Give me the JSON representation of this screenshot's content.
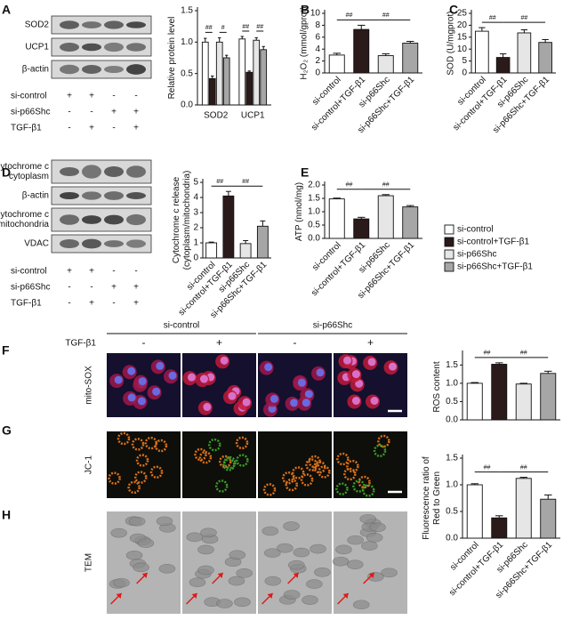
{
  "panels": [
    "A",
    "B",
    "C",
    "D",
    "E",
    "F",
    "G",
    "H"
  ],
  "blot_A": {
    "bands": [
      [
        "SOD2"
      ],
      [
        "UCP1"
      ],
      [
        "β-actin"
      ]
    ],
    "conditions": [
      {
        "label": "si-control",
        "signs": [
          "+",
          "+",
          "-",
          "-"
        ]
      },
      {
        "label": "si-p66Shc",
        "signs": [
          "-",
          "-",
          "+",
          "+"
        ]
      },
      {
        "label": "TGF-β1",
        "signs": [
          "-",
          "+",
          "-",
          "+"
        ]
      }
    ]
  },
  "blot_D": {
    "bands": [
      [
        "Cytochrome c",
        "cytoplasm"
      ],
      [
        "β-actin"
      ],
      [
        "Cytochrome c",
        "mitochondria"
      ],
      [
        "VDAC"
      ]
    ],
    "conditions": [
      {
        "label": "si-control",
        "signs": [
          "+",
          "+",
          "-",
          "-"
        ]
      },
      {
        "label": "si-p66Shc",
        "signs": [
          "-",
          "-",
          "+",
          "+"
        ]
      },
      {
        "label": "TGF-β1",
        "signs": [
          "-",
          "+",
          "-",
          "+"
        ]
      }
    ]
  },
  "images": {
    "groups": [
      "si-control",
      "si-p66Shc"
    ],
    "treatment": "TGF-β1",
    "signs": [
      "-",
      "+",
      "-",
      "+"
    ],
    "rows": [
      "mito-SOX",
      "JC-1",
      "TEM"
    ]
  },
  "chart_data": [
    {
      "type": "grouped_bar",
      "ylabel": "Relative protein level",
      "categories": [
        "SOD2",
        "UCP1"
      ],
      "series": [
        {
          "color": "#ffffff",
          "values": [
            1.0,
            1.05
          ],
          "errors": [
            0.06,
            0.04
          ]
        },
        {
          "color": "#2b1a1a",
          "values": [
            0.42,
            0.52
          ],
          "errors": [
            0.04,
            0.02
          ]
        },
        {
          "color": "#e6e6e6",
          "values": [
            1.0,
            1.03
          ],
          "errors": [
            0.07,
            0.04
          ]
        },
        {
          "color": "#a6a6a6",
          "values": [
            0.75,
            0.88
          ],
          "errors": [
            0.04,
            0.05
          ]
        }
      ],
      "ylim": [
        0,
        1.5
      ],
      "yticks": [
        {
          "value": 0,
          "label": "0.0"
        },
        0.5,
        {
          "value": 1,
          "label": "1.0"
        },
        1.5
      ],
      "annotations": [
        {
          "label": "##",
          "category": 0,
          "from": 0,
          "to": 1
        },
        {
          "label": "#",
          "category": 0,
          "from": 2,
          "to": 3
        },
        {
          "label": "##",
          "category": 1,
          "from": 0,
          "to": 1
        },
        {
          "label": "##",
          "category": 1,
          "from": 2,
          "to": 3
        }
      ]
    },
    {
      "type": "bar",
      "ylabel": "H₂O₂ (mmol/gprot)",
      "categories": [
        "si-control",
        "si-control+TGF-β1",
        "si-p66Shc",
        "si-p66Shc+TGF-β1"
      ],
      "colors": [
        "#ffffff",
        "#2b1a1a",
        "#e6e6e6",
        "#a6a6a6"
      ],
      "values": [
        3.0,
        7.3,
        2.9,
        5.0
      ],
      "errors": [
        0.3,
        0.7,
        0.3,
        0.3
      ],
      "ylim": [
        0,
        10
      ],
      "yticks": [
        0,
        2,
        4,
        6,
        8,
        10
      ],
      "annotations": [
        {
          "label": "##",
          "from": 0,
          "to": 1
        },
        {
          "label": "##",
          "from": 1,
          "to": 3
        }
      ]
    },
    {
      "type": "bar",
      "ylabel": "SOD (U/mgprot)",
      "categories": [
        "si-control",
        "si-control+TGF-β1",
        "si-p66Shc",
        "si-p66Shc+TGF-β1"
      ],
      "colors": [
        "#ffffff",
        "#2b1a1a",
        "#e6e6e6",
        "#a6a6a6"
      ],
      "values": [
        17.5,
        6.5,
        16.8,
        12.8
      ],
      "errors": [
        1.5,
        1.5,
        1.3,
        1.2
      ],
      "ylim": [
        0,
        25
      ],
      "yticks": [
        0,
        5,
        10,
        15,
        20,
        25
      ],
      "annotations": [
        {
          "label": "##",
          "from": 0,
          "to": 1
        },
        {
          "label": "##",
          "from": 1,
          "to": 3
        }
      ]
    },
    {
      "type": "bar",
      "ylabel": [
        "Cytochrome c release",
        "(cytoplasm/mitochondria)"
      ],
      "categories": [
        "si-control",
        "si-control+TGF-β1",
        "si-p66Shc",
        "si-p66Shc+TGF-β1"
      ],
      "colors": [
        "#ffffff",
        "#2b1a1a",
        "#e6e6e6",
        "#a6a6a6"
      ],
      "values": [
        1.0,
        4.1,
        0.95,
        2.1
      ],
      "errors": [
        0.05,
        0.3,
        0.2,
        0.35
      ],
      "ylim": [
        0,
        5
      ],
      "yticks": [
        0,
        1,
        2,
        3,
        4,
        5
      ],
      "annotations": [
        {
          "label": "##",
          "from": 0,
          "to": 1
        },
        {
          "label": "##",
          "from": 1,
          "to": 3
        }
      ]
    },
    {
      "type": "bar",
      "ylabel": "ATP (nmol/mg)",
      "categories": [
        "si-control",
        "si-control+TGF-β1",
        "si-p66Shc",
        "si-p66Shc+TGF-β1"
      ],
      "colors": [
        "#ffffff",
        "#2b1a1a",
        "#e6e6e6",
        "#a6a6a6"
      ],
      "values": [
        1.48,
        0.73,
        1.6,
        1.18
      ],
      "errors": [
        0.03,
        0.06,
        0.04,
        0.05
      ],
      "ylim": [
        0,
        2.0
      ],
      "yticks": [
        {
          "value": 0,
          "label": "0.0"
        },
        0.5,
        {
          "value": 1,
          "label": "1.0"
        },
        1.5,
        {
          "value": 2,
          "label": "2.0"
        }
      ],
      "annotations": [
        {
          "label": "##",
          "from": 0,
          "to": 1
        },
        {
          "label": "##",
          "from": 1,
          "to": 3
        }
      ]
    },
    {
      "type": "bar",
      "ylabel": "ROS content",
      "colors": [
        "#ffffff",
        "#2b1a1a",
        "#e6e6e6",
        "#a6a6a6"
      ],
      "values": [
        1.0,
        1.52,
        0.98,
        1.27
      ],
      "errors": [
        0.02,
        0.04,
        0.02,
        0.06
      ],
      "ylim": [
        0,
        1.8
      ],
      "yticks": [
        {
          "value": 0,
          "label": "0.0"
        },
        0.5,
        {
          "value": 1,
          "label": "1.0"
        },
        1.5
      ],
      "annotations": [
        {
          "label": "##",
          "from": 0,
          "to": 1
        },
        {
          "label": "##",
          "from": 1,
          "to": 3
        }
      ]
    },
    {
      "type": "bar",
      "ylabel": [
        "Fluorescence ratio of",
        "Red to Green"
      ],
      "categories": [
        "si-control",
        "si-control+TGF-β1",
        "si-p66Shc",
        "si-p66Shc+TGF-β1"
      ],
      "colors": [
        "#ffffff",
        "#2b1a1a",
        "#e6e6e6",
        "#a6a6a6"
      ],
      "values": [
        1.0,
        0.38,
        1.12,
        0.73
      ],
      "errors": [
        0.02,
        0.04,
        0.02,
        0.08
      ],
      "ylim": [
        0,
        1.5
      ],
      "yticks": [
        {
          "value": 0,
          "label": "0.0"
        },
        0.5,
        {
          "value": 1,
          "label": "1.0"
        },
        1.5
      ],
      "annotations": [
        {
          "label": "##",
          "from": 0,
          "to": 1
        },
        {
          "label": "##",
          "from": 1,
          "to": 3
        }
      ]
    }
  ]
}
